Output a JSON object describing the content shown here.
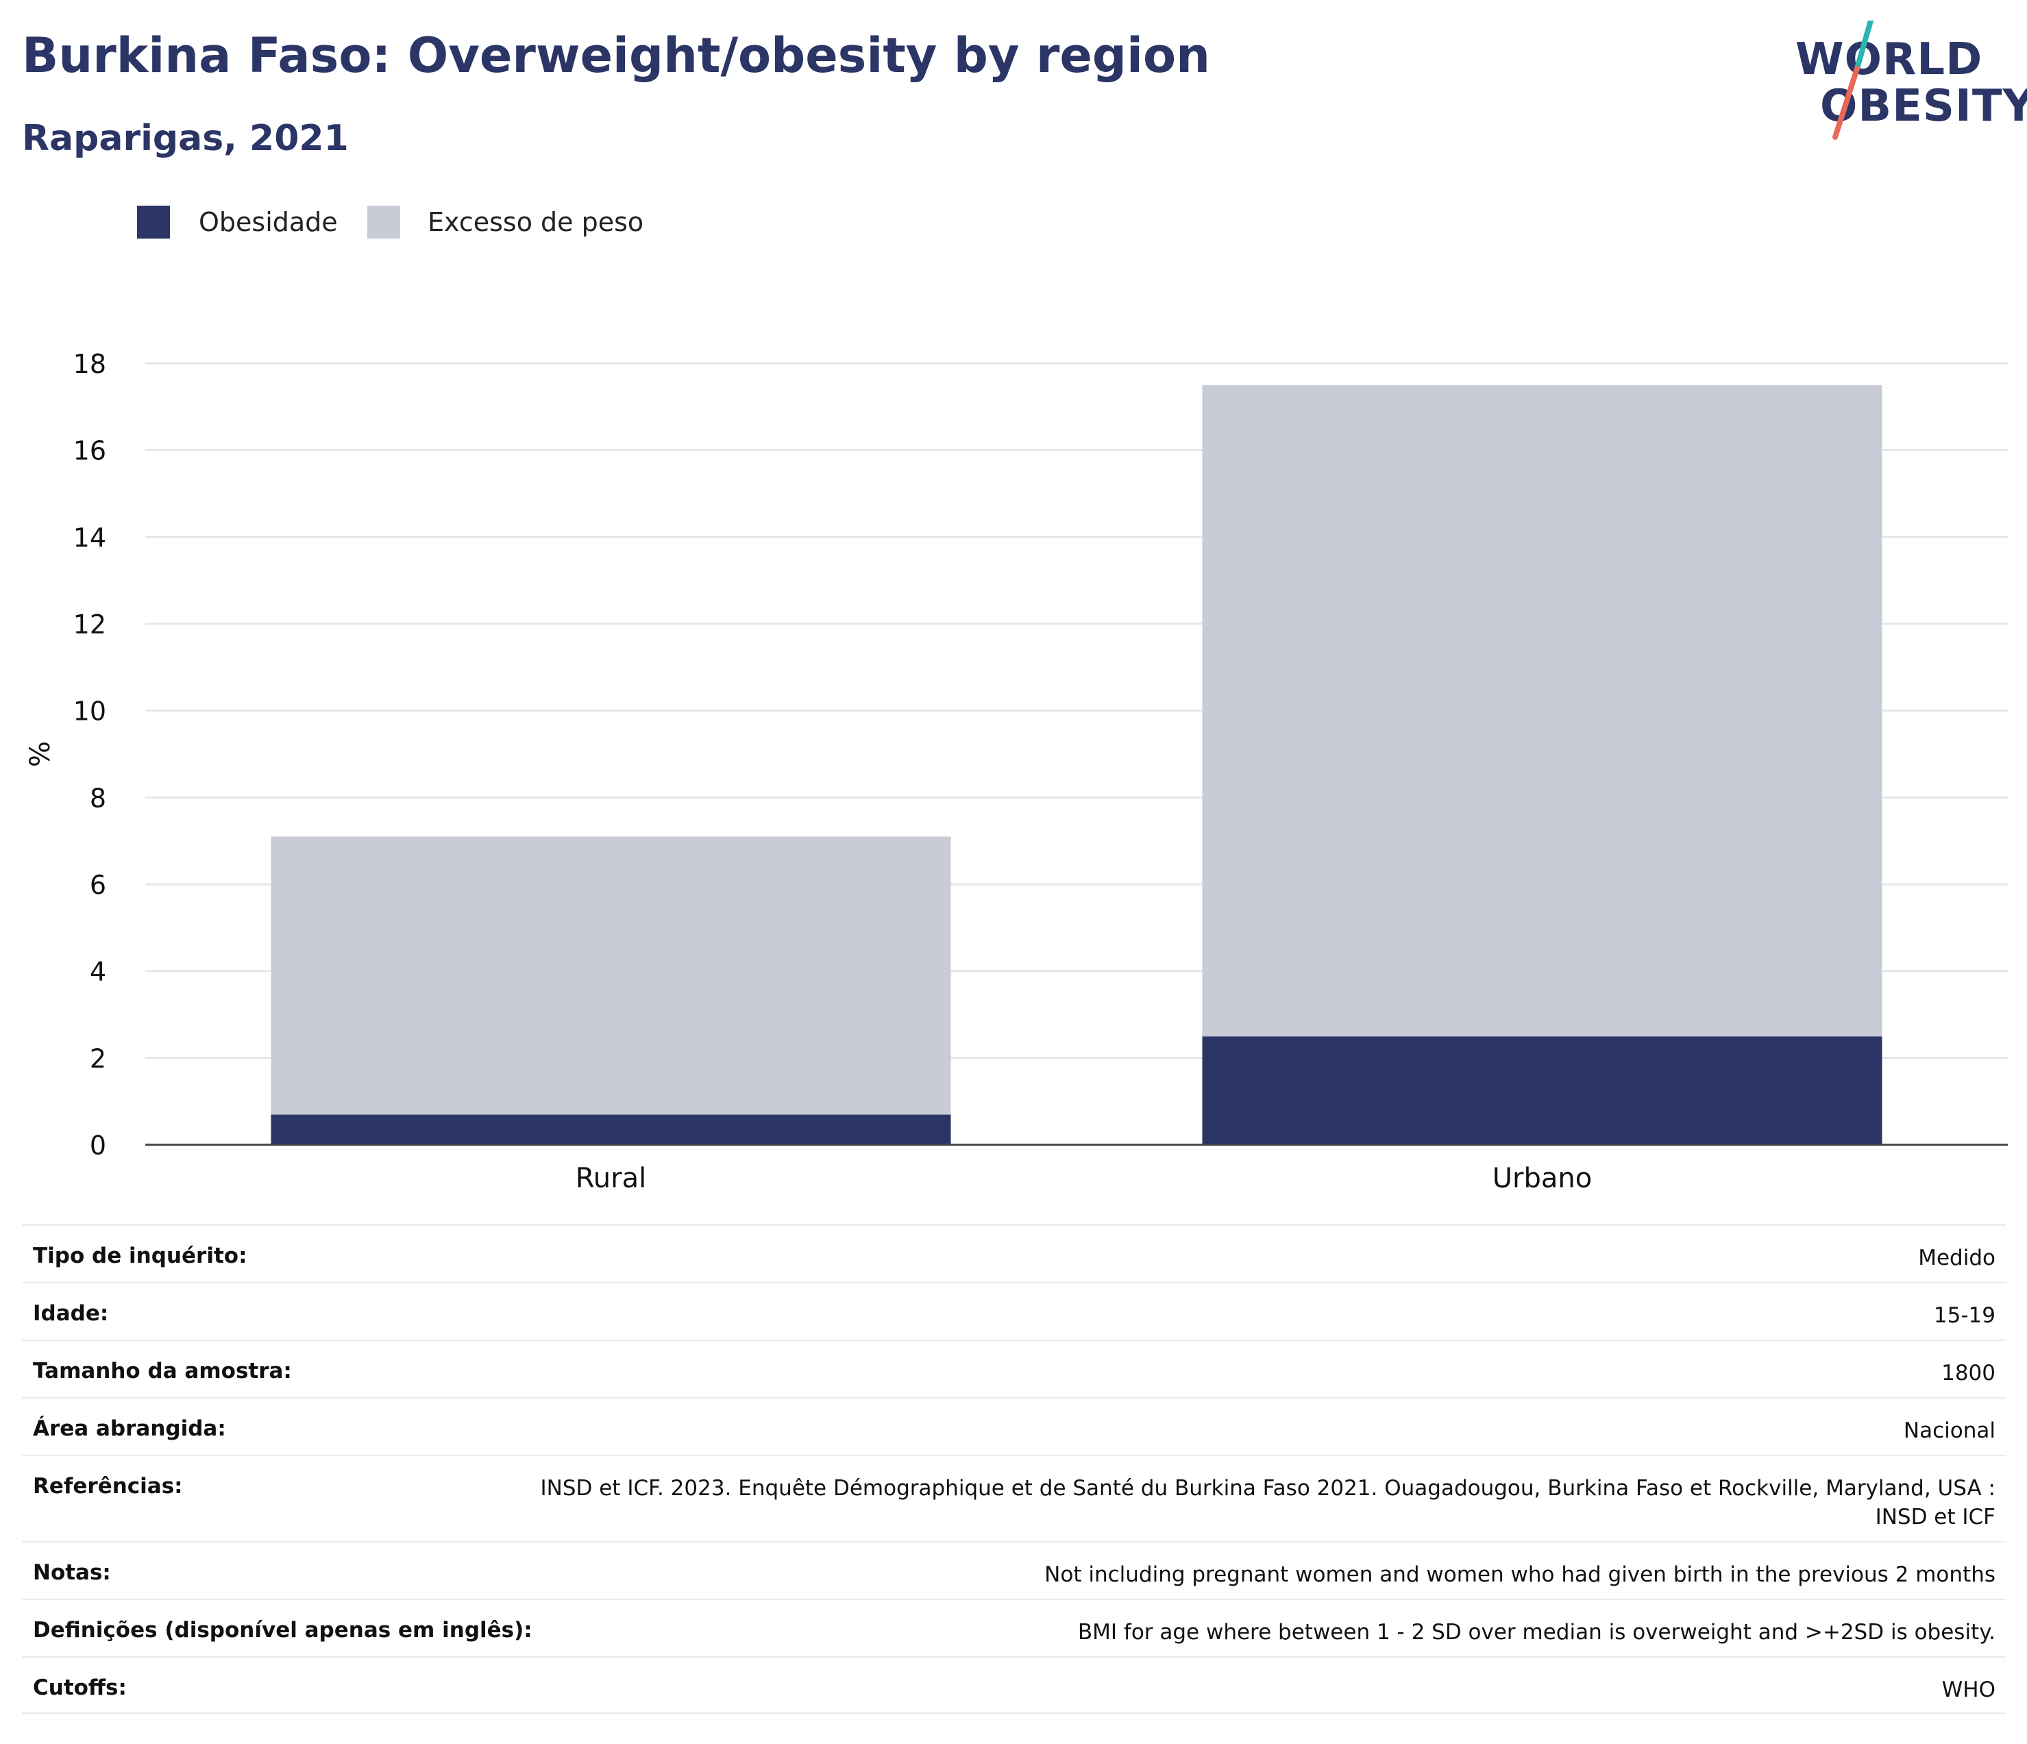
{
  "header": {
    "title": "Burkina Faso: Overweight/obesity by region",
    "subtitle": "Raparigas, 2021"
  },
  "logo": {
    "line1": "WORLD",
    "line2": "OBESITY"
  },
  "colors": {
    "obesity": "#2b3566",
    "overweight": "#c9cbd6",
    "title": "#2b3566",
    "logo_teal": "#2bb5b0",
    "logo_coral": "#e8685a"
  },
  "legend": [
    {
      "label": "Obesidade",
      "color": "#2b3566"
    },
    {
      "label": "Excesso de peso",
      "color": "#c9cbd6"
    }
  ],
  "chart_data": {
    "type": "bar",
    "stacked": true,
    "categories": [
      "Rural",
      "Urbano"
    ],
    "series": [
      {
        "name": "Obesidade",
        "values": [
          0.7,
          2.5
        ]
      },
      {
        "name": "Excesso de peso",
        "values": [
          6.4,
          15.0
        ]
      }
    ],
    "ylabel": "%",
    "xlabel": "",
    "ylim": [
      0,
      18
    ],
    "yticks": [
      0,
      2,
      4,
      6,
      8,
      10,
      12,
      14,
      16,
      18
    ],
    "grid": true,
    "legend_position": "top-left"
  },
  "info": [
    {
      "label": "Tipo de inquérito:",
      "value": "Medido"
    },
    {
      "label": "Idade:",
      "value": "15-19"
    },
    {
      "label": "Tamanho da amostra:",
      "value": "1800"
    },
    {
      "label": "Área abrangida:",
      "value": "Nacional"
    },
    {
      "label": "Referências:",
      "value": "INSD et ICF. 2023. Enquête Démographique et de Santé du Burkina Faso 2021. Ouagadougou, Burkina Faso et Rockville, Maryland, USA : INSD et ICF"
    },
    {
      "label": "Notas:",
      "value": "Not including pregnant women and women who had given birth in the previous 2 months"
    },
    {
      "label": "Definições (disponível apenas em inglês):",
      "value": "BMI for age where between 1 - 2 SD over median is overweight and >+2SD is obesity."
    },
    {
      "label": "Cutoffs:",
      "value": "WHO"
    }
  ]
}
